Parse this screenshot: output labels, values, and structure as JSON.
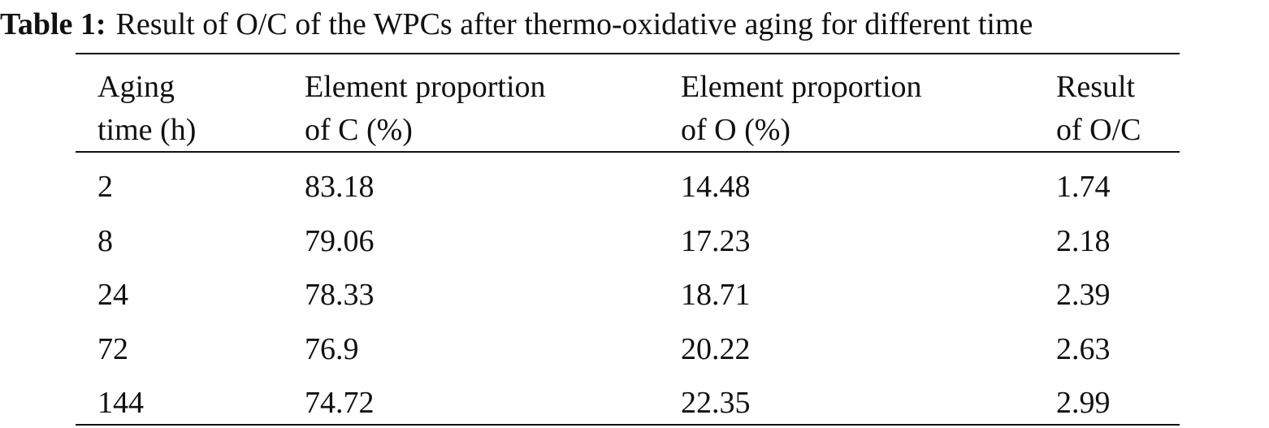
{
  "caption": {
    "label": "Table 1:",
    "text": "Result of O/C of the WPCs after thermo-oxidative aging for different time"
  },
  "table": {
    "headers": [
      [
        "Aging",
        "time (h)"
      ],
      [
        "Element proportion",
        "of C (%)"
      ],
      [
        "Element proportion",
        "of O (%)"
      ],
      [
        "Result",
        "of O/C"
      ]
    ],
    "rows": [
      [
        "2",
        "83.18",
        "14.48",
        "1.74"
      ],
      [
        "8",
        "79.06",
        "17.23",
        "2.18"
      ],
      [
        "24",
        "78.33",
        "18.71",
        "2.39"
      ],
      [
        "72",
        "76.9",
        "20.22",
        "2.63"
      ],
      [
        "144",
        "74.72",
        "22.35",
        "2.99"
      ]
    ]
  }
}
